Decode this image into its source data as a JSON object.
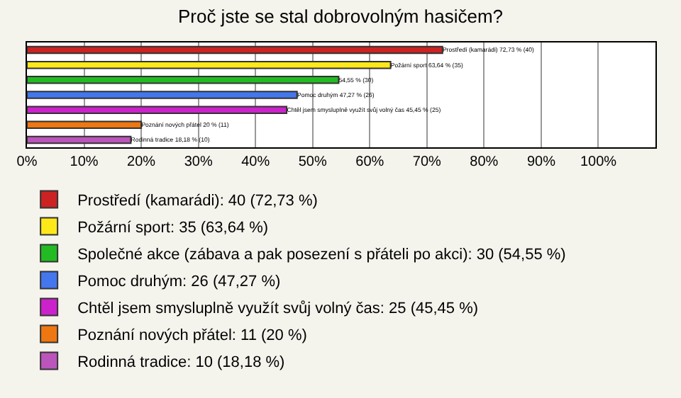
{
  "chart_data": {
    "type": "bar",
    "orientation": "horizontal",
    "title": "Proč jste se stal dobrovolným hasičem?",
    "categories": [
      null,
      null,
      null,
      null,
      null,
      null,
      null
    ],
    "series": [
      {
        "name": "Prostředí (kamarádi): 40 (72,73 %)",
        "color": "#cc2222",
        "values": [
          72.73,
          null,
          null,
          null,
          null,
          null,
          null
        ],
        "value_labels": [
          "Prostředí (kamarádi) 72,73 % (40)",
          null,
          null,
          null,
          null,
          null,
          null
        ]
      },
      {
        "name": "Požární sport: 35 (63,64 %)",
        "color": "#ffe81a",
        "values": [
          null,
          63.64,
          null,
          null,
          null,
          null,
          null
        ],
        "value_labels": [
          null,
          "Požární sport 63,64 % (35)",
          null,
          null,
          null,
          null,
          null
        ]
      },
      {
        "name": "Společné akce (zábava a pak posezení s přáteli po akci): 30 (54,55 %)",
        "color": "#22bb22",
        "values": [
          null,
          null,
          54.55,
          null,
          null,
          null,
          null
        ],
        "value_labels": [
          null,
          null,
          "54,55 % (30)",
          null,
          null,
          null,
          null
        ]
      },
      {
        "name": "Pomoc druhým: 26 (47,27 %)",
        "color": "#4477ee",
        "values": [
          null,
          null,
          null,
          47.27,
          null,
          null,
          null
        ],
        "value_labels": [
          null,
          null,
          null,
          "Pomoc druhým 47,27 % (26)",
          null,
          null,
          null
        ]
      },
      {
        "name": "Chtěl jsem smysluplně využít svůj volný čas: 25 (45,45 %)",
        "color": "#cc22cc",
        "values": [
          null,
          null,
          null,
          null,
          45.45,
          null,
          null
        ],
        "value_labels": [
          null,
          null,
          null,
          null,
          "Chtěl jsem smysluplně využít svůj volný čas 45,45 % (25)",
          null,
          null
        ]
      },
      {
        "name": "Poznání nových přátel: 11 (20 %)",
        "color": "#ee7711",
        "values": [
          null,
          null,
          null,
          null,
          null,
          20,
          null
        ],
        "value_labels": [
          null,
          null,
          null,
          null,
          null,
          "Poznání nových přátel 20 % (11)",
          null
        ]
      },
      {
        "name": "Rodinná tradice: 10 (18,18 %)",
        "color": "#bb55bb",
        "values": [
          null,
          null,
          null,
          null,
          null,
          null,
          18.18
        ],
        "value_labels": [
          null,
          null,
          null,
          null,
          null,
          null,
          "Rodinná tradice 18,18 % (10)"
        ]
      }
    ],
    "xlim": [
      0,
      110
    ],
    "xticks": [
      {
        "value": 0,
        "label": "0%"
      },
      {
        "value": 10,
        "label": "10%"
      },
      {
        "value": 20,
        "label": "20%"
      },
      {
        "value": 30,
        "label": "30%"
      },
      {
        "value": 40,
        "label": "40%"
      },
      {
        "value": 50,
        "label": "50%"
      },
      {
        "value": 60,
        "label": "60%"
      },
      {
        "value": 70,
        "label": "70%"
      },
      {
        "value": 80,
        "label": "80%"
      },
      {
        "value": 90,
        "label": "90%"
      },
      {
        "value": 100,
        "label": "100%"
      }
    ],
    "grid": "x",
    "legend": "bottom",
    "tick_labels": "x"
  }
}
